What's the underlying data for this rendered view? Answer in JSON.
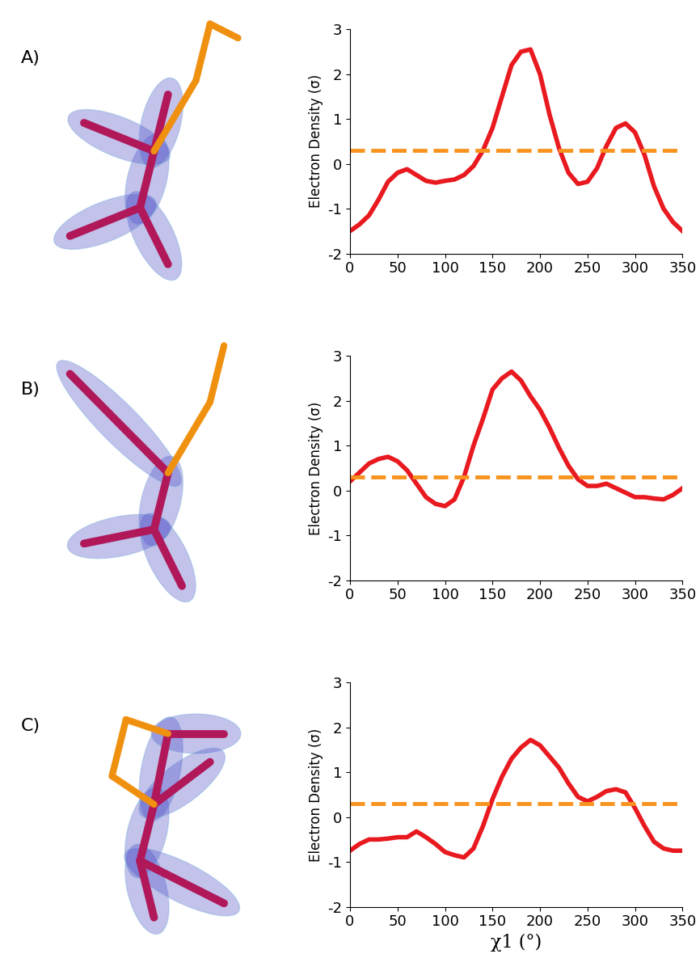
{
  "chart_data": [
    {
      "type": "line",
      "panel": "A)",
      "y_label": "Electron Density (σ)",
      "color": "#e8191f",
      "x": [
        0,
        10,
        20,
        30,
        40,
        50,
        60,
        70,
        80,
        90,
        100,
        110,
        120,
        130,
        140,
        150,
        160,
        170,
        180,
        190,
        200,
        210,
        220,
        230,
        240,
        250,
        260,
        270,
        280,
        290,
        300,
        310,
        320,
        330,
        340,
        350
      ],
      "values": [
        -1.5,
        -1.35,
        -1.15,
        -0.8,
        -0.4,
        -0.2,
        -0.12,
        -0.25,
        -0.38,
        -0.42,
        -0.38,
        -0.35,
        -0.25,
        -0.05,
        0.3,
        0.8,
        1.5,
        2.2,
        2.5,
        2.55,
        2.0,
        1.1,
        0.35,
        -0.2,
        -0.45,
        -0.4,
        -0.1,
        0.4,
        0.8,
        0.9,
        0.7,
        0.2,
        -0.5,
        -1.0,
        -1.3,
        -1.5
      ],
      "reference_value": 0.3,
      "reference_color": "#f7931e",
      "reference_line_style": "dashed",
      "xlim": [
        0,
        350
      ],
      "ylim": [
        -2,
        3
      ],
      "xticks": [
        0,
        50,
        100,
        150,
        200,
        250,
        300,
        350
      ],
      "yticks": [
        -2,
        -1,
        0,
        1,
        2,
        3
      ]
    },
    {
      "type": "line",
      "panel": "B)",
      "y_label": "Electron Density (σ)",
      "color": "#e8191f",
      "x": [
        0,
        10,
        20,
        30,
        40,
        50,
        60,
        70,
        80,
        90,
        100,
        110,
        120,
        130,
        140,
        150,
        160,
        170,
        180,
        190,
        200,
        210,
        220,
        230,
        240,
        250,
        260,
        270,
        280,
        290,
        300,
        310,
        320,
        330,
        340,
        350
      ],
      "values": [
        0.2,
        0.4,
        0.6,
        0.7,
        0.75,
        0.65,
        0.45,
        0.15,
        -0.15,
        -0.3,
        -0.35,
        -0.2,
        0.3,
        1.0,
        1.6,
        2.25,
        2.5,
        2.65,
        2.45,
        2.1,
        1.8,
        1.4,
        0.95,
        0.55,
        0.25,
        0.1,
        0.1,
        0.15,
        0.05,
        -0.05,
        -0.15,
        -0.15,
        -0.18,
        -0.2,
        -0.1,
        0.05
      ],
      "reference_value": 0.3,
      "reference_color": "#f7931e",
      "reference_line_style": "dashed",
      "xlim": [
        0,
        350
      ],
      "ylim": [
        -2,
        3
      ],
      "xticks": [
        0,
        50,
        100,
        150,
        200,
        250,
        300,
        350
      ],
      "yticks": [
        -2,
        -1,
        0,
        1,
        2,
        3
      ]
    },
    {
      "type": "line",
      "panel": "C)",
      "y_label": "Electron Density (σ)",
      "x_label": "χ1 (°)",
      "color": "#e8191f",
      "x": [
        0,
        10,
        20,
        30,
        40,
        50,
        60,
        70,
        80,
        90,
        100,
        110,
        120,
        130,
        140,
        150,
        160,
        170,
        180,
        190,
        200,
        210,
        220,
        230,
        240,
        250,
        260,
        270,
        280,
        290,
        300,
        310,
        320,
        330,
        340,
        350
      ],
      "values": [
        -0.75,
        -0.6,
        -0.5,
        -0.5,
        -0.48,
        -0.45,
        -0.45,
        -0.32,
        -0.45,
        -0.6,
        -0.78,
        -0.85,
        -0.9,
        -0.7,
        -0.2,
        0.4,
        0.9,
        1.3,
        1.55,
        1.72,
        1.6,
        1.35,
        1.1,
        0.75,
        0.45,
        0.35,
        0.45,
        0.58,
        0.62,
        0.55,
        0.2,
        -0.2,
        -0.55,
        -0.7,
        -0.75,
        -0.75
      ],
      "reference_value": 0.3,
      "reference_color": "#f7931e",
      "reference_line_style": "dashed",
      "xlim": [
        0,
        350
      ],
      "ylim": [
        -2,
        3
      ],
      "xticks": [
        0,
        50,
        100,
        150,
        200,
        250,
        300,
        350
      ],
      "yticks": [
        -2,
        -1,
        0,
        1,
        2,
        3
      ]
    }
  ]
}
